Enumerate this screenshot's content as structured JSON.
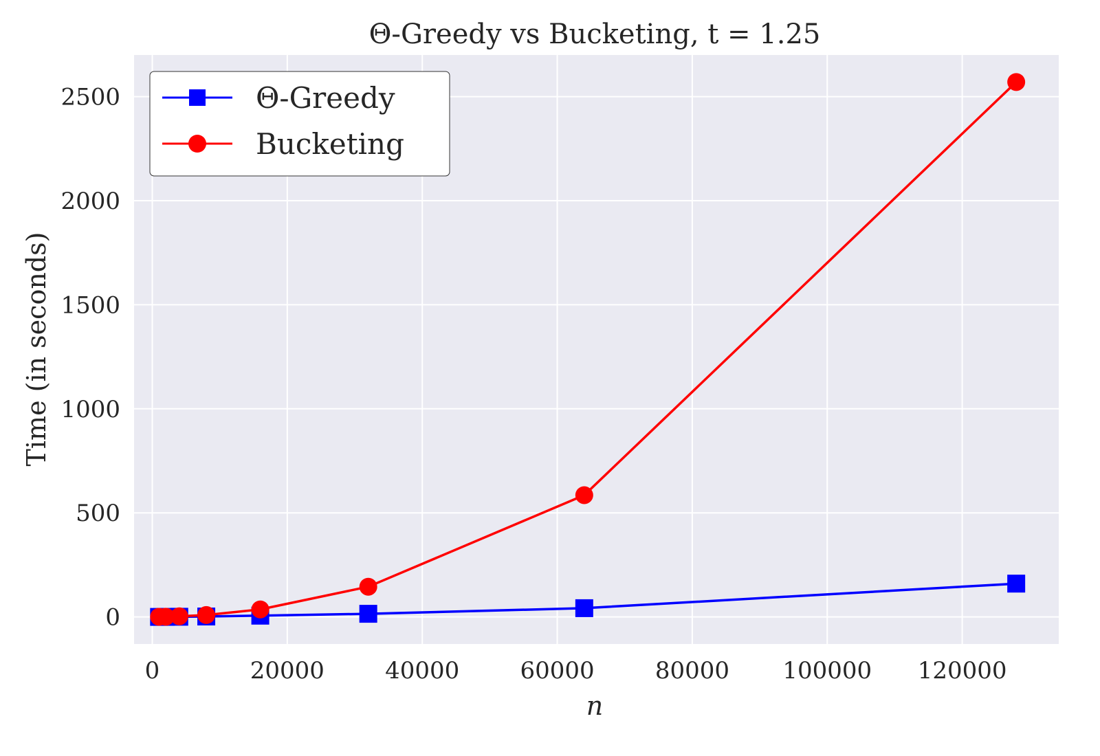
{
  "chart_data": {
    "type": "line",
    "title": "Θ-Greedy vs Bucketing, t = 1.25",
    "xlabel": "n",
    "ylabel": "Time (in seconds)",
    "xlim": [
      -2700,
      134300
    ],
    "ylim": [
      -130,
      2700
    ],
    "xticks": [
      0,
      20000,
      40000,
      60000,
      80000,
      100000,
      120000
    ],
    "yticks": [
      0,
      500,
      1000,
      1500,
      2000,
      2500
    ],
    "grid": true,
    "legend_position": "top-left",
    "series": [
      {
        "name": "Θ-Greedy",
        "color": "#0000ff",
        "marker": "square",
        "x": [
          1000,
          2000,
          4000,
          8000,
          16000,
          32000,
          64000,
          128000
        ],
        "y": [
          0.1,
          0.3,
          0.8,
          2,
          6,
          15,
          42,
          160
        ]
      },
      {
        "name": "Bucketing",
        "color": "#ff0000",
        "marker": "circle",
        "x": [
          1000,
          2000,
          4000,
          8000,
          16000,
          32000,
          64000,
          128000
        ],
        "y": [
          0.5,
          1,
          3,
          9,
          36,
          145,
          585,
          2570
        ]
      }
    ]
  }
}
